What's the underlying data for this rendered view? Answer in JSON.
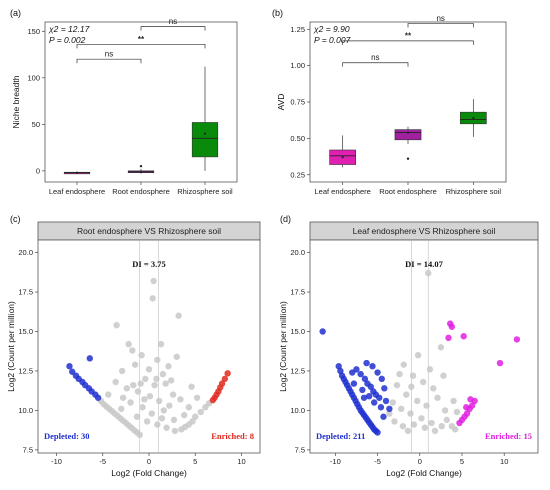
{
  "chart_data": [
    {
      "type": "box",
      "panel_label": "(a)",
      "ylabel": "Niche breadth",
      "categories": [
        "Leaf endosphere",
        "Root endosphere",
        "Rhizosphere soil"
      ],
      "yticks": [
        0,
        50,
        100,
        150
      ],
      "ylim": [
        -12,
        160
      ],
      "colors": [
        "#e020b0",
        "#a020a0",
        "#0a8a0a"
      ],
      "stat_lines": [
        "χ2 = 12.17",
        "P = 0.002"
      ],
      "boxes": [
        {
          "min": -3,
          "q1": -2.5,
          "median": -2,
          "q3": -1.5,
          "max": -1,
          "mean": -2,
          "outliers": []
        },
        {
          "min": -3,
          "q1": -2,
          "median": -1,
          "q3": 0,
          "max": 2,
          "mean": -1,
          "outliers": [
            5
          ]
        },
        {
          "min": 0,
          "q1": 15,
          "median": 35,
          "q3": 52,
          "max": 112,
          "mean": 40,
          "outliers": []
        }
      ],
      "comparisons": [
        {
          "from": 0,
          "to": 1,
          "y": 120,
          "label": "ns"
        },
        {
          "from": 0,
          "to": 2,
          "y": 136,
          "label": "**"
        },
        {
          "from": 1,
          "to": 2,
          "y": 155,
          "label": "ns"
        }
      ]
    },
    {
      "type": "box",
      "panel_label": "(b)",
      "ylabel": "AVD",
      "categories": [
        "Leaf endosphere",
        "Root endosphere",
        "Rhizosphere soil"
      ],
      "yticks": [
        0.25,
        0.5,
        0.75,
        1.0,
        1.25
      ],
      "yticklabels": [
        "0.25",
        "0.50",
        "0.75",
        "1.00",
        "1.25"
      ],
      "ylim": [
        0.2,
        1.3
      ],
      "colors": [
        "#e020b0",
        "#a020a0",
        "#0a8a0a"
      ],
      "stat_lines": [
        "χ2 = 9.90",
        "P = 0.007"
      ],
      "boxes": [
        {
          "min": 0.3,
          "q1": 0.32,
          "median": 0.38,
          "q3": 0.42,
          "max": 0.52,
          "mean": 0.37,
          "outliers": []
        },
        {
          "min": 0.46,
          "q1": 0.49,
          "median": 0.54,
          "q3": 0.56,
          "max": 0.58,
          "mean": 0.54,
          "outliers": [
            0.36
          ]
        },
        {
          "min": 0.51,
          "q1": 0.6,
          "median": 0.63,
          "q3": 0.68,
          "max": 0.77,
          "mean": 0.64,
          "outliers": []
        }
      ],
      "comparisons": [
        {
          "from": 0,
          "to": 1,
          "y": 1.02,
          "label": "ns"
        },
        {
          "from": 0,
          "to": 2,
          "y": 1.17,
          "label": "**"
        },
        {
          "from": 1,
          "to": 2,
          "y": 1.29,
          "label": "ns"
        }
      ]
    },
    {
      "type": "scatter",
      "panel_label": "(c)",
      "strip_title": "Root endosphere VS Rhizosphere soil",
      "xlabel": "Log2 (Fold Change)",
      "ylabel": "Log2 (Count per million)",
      "xticks": [
        -10,
        -5,
        0,
        5,
        10
      ],
      "xlim": [
        -12,
        12
      ],
      "yticks": [
        7.5,
        10.0,
        12.5,
        15.0,
        17.5,
        20.0
      ],
      "ylim": [
        7.3,
        20.8
      ],
      "threshold_lines": [
        -1,
        1
      ],
      "di_label": "DI = 3.75",
      "depleted_label": "Depleted: 30",
      "enriched_label": "Enriched: 8",
      "depleted_color": "#2030d0",
      "enriched_color": "#e02a20",
      "ns_color": "#c8c8c8",
      "depleted_points": [
        [
          -8.6,
          12.8
        ],
        [
          -8.3,
          12.45
        ],
        [
          -7.9,
          12.2
        ],
        [
          -7.6,
          12.0
        ],
        [
          -7.2,
          11.8
        ],
        [
          -6.9,
          11.6
        ],
        [
          -6.5,
          11.4
        ],
        [
          -6.2,
          11.2
        ],
        [
          -5.8,
          11.0
        ],
        [
          -5.5,
          10.8
        ],
        [
          -6.4,
          13.3
        ]
      ],
      "enriched_points": [
        [
          8.5,
          12.35
        ],
        [
          8.2,
          12.0
        ],
        [
          7.9,
          11.7
        ],
        [
          7.7,
          11.45
        ],
        [
          7.5,
          11.2
        ],
        [
          7.3,
          11.0
        ],
        [
          7.1,
          10.8
        ],
        [
          6.9,
          10.65
        ]
      ],
      "ns_points": [
        [
          -5.2,
          10.6
        ],
        [
          -4.9,
          10.4
        ],
        [
          -4.6,
          10.25
        ],
        [
          -4.3,
          10.1
        ],
        [
          -4.0,
          9.95
        ],
        [
          -3.7,
          9.8
        ],
        [
          -3.4,
          9.65
        ],
        [
          -3.1,
          9.5
        ],
        [
          -2.8,
          9.35
        ],
        [
          -2.5,
          9.2
        ],
        [
          -2.2,
          9.05
        ],
        [
          -1.9,
          8.9
        ],
        [
          -1.6,
          8.75
        ],
        [
          -1.3,
          8.6
        ],
        [
          -1.0,
          8.45
        ],
        [
          -3.5,
          15.4
        ],
        [
          -2.2,
          14.2
        ],
        [
          0.5,
          18.2
        ],
        [
          0.4,
          17.1
        ],
        [
          3.2,
          16.0
        ],
        [
          -1.8,
          13.8
        ],
        [
          -0.8,
          13.5
        ],
        [
          1.3,
          14.2
        ],
        [
          0.9,
          13.2
        ],
        [
          -2.9,
          12.5
        ],
        [
          -1.5,
          12.9
        ],
        [
          2.1,
          12.8
        ],
        [
          3.0,
          13.4
        ],
        [
          -0.4,
          12.0
        ],
        [
          0.6,
          11.6
        ],
        [
          1.8,
          11.7
        ],
        [
          2.6,
          11.0
        ],
        [
          -3.6,
          11.8
        ],
        [
          -2.4,
          11.4
        ],
        [
          -1.2,
          11.2
        ],
        [
          0.1,
          10.9
        ],
        [
          1.1,
          10.6
        ],
        [
          2.2,
          10.3
        ],
        [
          3.4,
          10.7
        ],
        [
          4.3,
          10.2
        ],
        [
          -2.0,
          10.5
        ],
        [
          -0.7,
          10.2
        ],
        [
          0.3,
          9.8
        ],
        [
          1.4,
          9.5
        ],
        [
          2.7,
          9.4
        ],
        [
          3.8,
          9.7
        ],
        [
          -1.3,
          9.6
        ],
        [
          -0.2,
          9.3
        ],
        [
          0.9,
          9.1
        ],
        [
          1.9,
          8.9
        ],
        [
          2.8,
          8.7
        ],
        [
          4.6,
          11.5
        ],
        [
          5.2,
          10.8
        ],
        [
          1.5,
          12.3
        ],
        [
          -0.9,
          11.7
        ],
        [
          5.0,
          9.6
        ],
        [
          5.6,
          9.9
        ],
        [
          6.1,
          10.2
        ],
        [
          6.5,
          10.45
        ],
        [
          4.7,
          9.3
        ],
        [
          4.3,
          9.1
        ],
        [
          3.9,
          8.95
        ],
        [
          3.5,
          8.8
        ],
        [
          -4.4,
          11.0
        ],
        [
          -2.8,
          10.8
        ],
        [
          -1.7,
          11.6
        ],
        [
          0.0,
          12.6
        ],
        [
          0.8,
          12.0
        ],
        [
          -0.5,
          10.7
        ],
        [
          1.6,
          10.0
        ],
        [
          2.4,
          11.9
        ],
        [
          -3.0,
          10.1
        ]
      ]
    },
    {
      "type": "scatter",
      "panel_label": "(d)",
      "strip_title": "Leaf endosphere VS Rhizosphere soil",
      "xlabel": "Log2 (Fold Change)",
      "ylabel": "Log2 (Count per million)",
      "xticks": [
        -10,
        -5,
        0,
        5,
        10
      ],
      "xlim": [
        -13,
        14
      ],
      "yticks": [
        7.5,
        10.0,
        12.5,
        15.0,
        17.5,
        20.0
      ],
      "ylim": [
        7.3,
        20.8
      ],
      "threshold_lines": [
        -1,
        1
      ],
      "di_label": "DI = 14.07",
      "depleted_label": "Depleted: 211",
      "enriched_label": "Enriched: 15",
      "depleted_color": "#2030d0",
      "enriched_color": "#e020e0",
      "ns_color": "#c8c8c8",
      "depleted_points": [
        [
          -11.5,
          15.0
        ],
        [
          -9.6,
          12.8
        ],
        [
          -9.4,
          12.5
        ],
        [
          -9.2,
          12.2
        ],
        [
          -9.0,
          12.0
        ],
        [
          -8.8,
          11.8
        ],
        [
          -8.6,
          11.6
        ],
        [
          -8.4,
          11.4
        ],
        [
          -8.2,
          11.2
        ],
        [
          -8.0,
          11.0
        ],
        [
          -7.8,
          10.8
        ],
        [
          -7.6,
          10.6
        ],
        [
          -7.4,
          10.4
        ],
        [
          -7.2,
          10.2
        ],
        [
          -7.0,
          10.0
        ],
        [
          -6.8,
          9.85
        ],
        [
          -6.6,
          9.7
        ],
        [
          -6.4,
          9.55
        ],
        [
          -6.2,
          9.4
        ],
        [
          -6.0,
          9.25
        ],
        [
          -5.8,
          9.1
        ],
        [
          -5.6,
          8.95
        ],
        [
          -5.4,
          8.8
        ],
        [
          -5.2,
          8.7
        ],
        [
          -5.0,
          8.6
        ],
        [
          -7.5,
          12.6
        ],
        [
          -7.0,
          12.3
        ],
        [
          -6.5,
          12.0
        ],
        [
          -6.2,
          11.7
        ],
        [
          -5.8,
          11.5
        ],
        [
          -5.5,
          11.2
        ],
        [
          -5.2,
          11.0
        ],
        [
          -4.8,
          10.8
        ],
        [
          -7.8,
          11.7
        ],
        [
          -6.8,
          11.3
        ],
        [
          -6.0,
          10.9
        ],
        [
          -5.4,
          10.5
        ],
        [
          -4.6,
          10.2
        ],
        [
          -4.2,
          11.4
        ],
        [
          -4.5,
          12.0
        ],
        [
          -5.0,
          12.4
        ],
        [
          -5.6,
          12.8
        ],
        [
          -6.3,
          13.0
        ],
        [
          -4.0,
          10.6
        ],
        [
          -3.6,
          10.1
        ],
        [
          -6.6,
          10.8
        ],
        [
          -8.0,
          12.4
        ],
        [
          -4.3,
          9.6
        ]
      ],
      "enriched_points": [
        [
          3.6,
          15.5
        ],
        [
          3.8,
          15.3
        ],
        [
          3.4,
          14.6
        ],
        [
          5.2,
          14.7
        ],
        [
          9.5,
          13.0
        ],
        [
          11.5,
          14.5
        ],
        [
          6.5,
          10.6
        ],
        [
          6.2,
          10.3
        ],
        [
          5.9,
          10.1
        ],
        [
          5.6,
          9.8
        ],
        [
          5.3,
          9.6
        ],
        [
          5.0,
          9.4
        ],
        [
          6.0,
          10.7
        ],
        [
          5.5,
          10.2
        ],
        [
          4.7,
          9.2
        ]
      ],
      "ns_points": [
        [
          1.0,
          18.7
        ],
        [
          2.5,
          14.0
        ],
        [
          -1.9,
          12.9
        ],
        [
          -0.8,
          12.2
        ],
        [
          0.4,
          11.8
        ],
        [
          1.6,
          11.4
        ],
        [
          -2.7,
          11.6
        ],
        [
          -1.6,
          11.0
        ],
        [
          -0.3,
          10.6
        ],
        [
          0.8,
          10.3
        ],
        [
          2.1,
          10.8
        ],
        [
          3.0,
          10.0
        ],
        [
          -3.2,
          10.5
        ],
        [
          -2.2,
          10.1
        ],
        [
          -1.1,
          9.8
        ],
        [
          0.2,
          9.5
        ],
        [
          1.4,
          9.2
        ],
        [
          2.6,
          9.0
        ],
        [
          -0.7,
          9.1
        ],
        [
          0.6,
          8.9
        ],
        [
          1.8,
          8.7
        ],
        [
          3.2,
          9.4
        ],
        [
          3.8,
          9.0
        ],
        [
          4.2,
          8.8
        ],
        [
          -3.6,
          9.8
        ],
        [
          -3.0,
          9.3
        ],
        [
          -2.0,
          9.0
        ],
        [
          -1.4,
          8.7
        ],
        [
          2.8,
          12.2
        ],
        [
          1.2,
          12.6
        ],
        [
          -0.2,
          13.5
        ],
        [
          4.0,
          10.6
        ],
        [
          4.4,
          9.9
        ],
        [
          -2.4,
          12.3
        ],
        [
          -1.0,
          11.5
        ]
      ]
    }
  ]
}
